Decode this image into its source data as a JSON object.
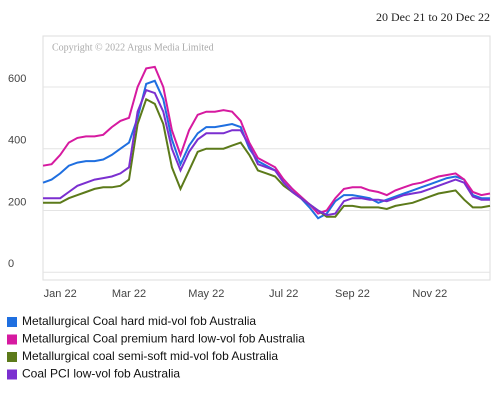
{
  "chart_data": {
    "type": "line",
    "subtitle": "20 Dec 21 to 20 Dec 22",
    "annotation": "Copyright © 2022 Argus Media Limited",
    "categories": [
      null,
      null,
      "Jan 22",
      null,
      null,
      null,
      null,
      null,
      null,
      null,
      "Mar 22",
      null,
      null,
      null,
      null,
      null,
      null,
      null,
      null,
      "May 22",
      null,
      null,
      null,
      null,
      null,
      null,
      null,
      null,
      "Jul 22",
      null,
      null,
      null,
      null,
      null,
      null,
      null,
      "Sep 22",
      null,
      null,
      null,
      null,
      null,
      null,
      null,
      null,
      "Nov 22",
      null,
      null,
      null,
      null,
      null,
      null,
      null
    ],
    "series": [
      {
        "name": "Metallurgical Coal hard mid-vol fob Australia",
        "color": "#1f6fe0",
        "values": [
          290,
          300,
          320,
          345,
          355,
          360,
          360,
          365,
          380,
          400,
          420,
          500,
          610,
          620,
          560,
          430,
          350,
          410,
          450,
          470,
          470,
          475,
          480,
          470,
          400,
          360,
          345,
          330,
          300,
          270,
          240,
          210,
          175,
          190,
          230,
          250,
          250,
          245,
          240,
          225,
          235,
          245,
          255,
          265,
          275,
          285,
          295,
          305,
          310,
          300,
          250,
          240,
          240
        ]
      },
      {
        "name": "Metallurgical Coal premium hard low-vol fob Australia",
        "color": "#d61aa0",
        "values": [
          345,
          350,
          380,
          420,
          435,
          440,
          440,
          445,
          470,
          490,
          500,
          600,
          660,
          665,
          600,
          460,
          380,
          460,
          510,
          520,
          520,
          525,
          520,
          490,
          420,
          370,
          355,
          340,
          300,
          270,
          245,
          220,
          190,
          200,
          240,
          270,
          275,
          275,
          265,
          260,
          250,
          265,
          275,
          285,
          290,
          300,
          310,
          315,
          320,
          300,
          260,
          250,
          255
        ]
      },
      {
        "name": "Metallurgical coal semi-soft mid-vol fob Australia",
        "color": "#5c7a1a",
        "values": [
          225,
          225,
          225,
          240,
          250,
          260,
          270,
          275,
          275,
          280,
          300,
          480,
          560,
          545,
          480,
          340,
          270,
          330,
          390,
          400,
          400,
          400,
          410,
          420,
          380,
          330,
          320,
          310,
          280,
          260,
          240,
          220,
          200,
          180,
          180,
          215,
          215,
          210,
          210,
          210,
          205,
          215,
          220,
          225,
          235,
          245,
          255,
          260,
          265,
          235,
          210,
          210,
          215
        ]
      },
      {
        "name": "Coal PCI low-vol fob Australia",
        "color": "#7b2fd0",
        "values": [
          240,
          240,
          240,
          260,
          280,
          290,
          300,
          305,
          310,
          320,
          340,
          520,
          590,
          580,
          520,
          400,
          330,
          390,
          430,
          450,
          450,
          450,
          460,
          460,
          410,
          350,
          340,
          330,
          290,
          260,
          240,
          220,
          200,
          185,
          190,
          230,
          240,
          240,
          235,
          235,
          230,
          240,
          250,
          255,
          260,
          270,
          280,
          290,
          300,
          290,
          245,
          235,
          235
        ]
      }
    ],
    "ylim": [
      -25,
      765
    ],
    "yticks": [
      0,
      200,
      400,
      600
    ],
    "grid": true
  }
}
